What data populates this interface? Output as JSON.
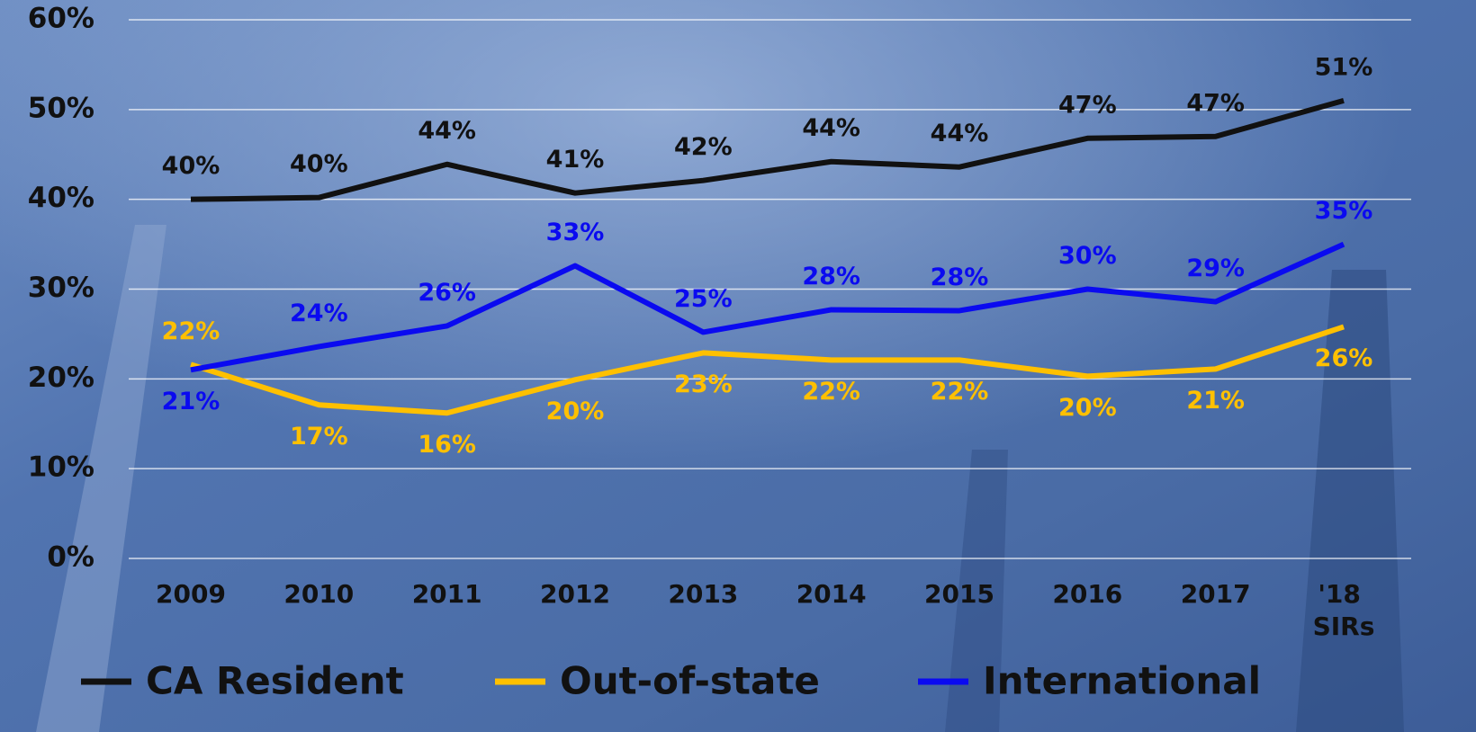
{
  "chart_data": {
    "type": "line",
    "categories": [
      "2009",
      "2010",
      "2011",
      "2012",
      "2013",
      "2014",
      "2015",
      "2016",
      "2017",
      "'18 SIRs"
    ],
    "series": [
      {
        "name": "CA Resident",
        "color": "#111111",
        "values": [
          40.0,
          40.2,
          43.9,
          40.7,
          42.1,
          44.2,
          43.6,
          46.8,
          47.0,
          51.0
        ],
        "value_labels": [
          "40%",
          "40%",
          "44%",
          "41%",
          "42%",
          "44%",
          "44%",
          "47%",
          "47%",
          "51%"
        ]
      },
      {
        "name": "Out-of-state",
        "color": "#ffc000",
        "values": [
          21.6,
          17.1,
          16.2,
          19.9,
          22.9,
          22.1,
          22.1,
          20.3,
          21.1,
          25.8
        ],
        "value_labels": [
          "22%",
          "17%",
          "16%",
          "20%",
          "23%",
          "22%",
          "22%",
          "20%",
          "21%",
          "26%"
        ]
      },
      {
        "name": "International",
        "color": "#0a0af0",
        "values": [
          21.0,
          23.6,
          25.9,
          32.6,
          25.2,
          27.7,
          27.6,
          30.0,
          28.6,
          35.0
        ],
        "value_labels": [
          "21%",
          "24%",
          "26%",
          "33%",
          "25%",
          "28%",
          "28%",
          "30%",
          "29%",
          "35%"
        ]
      }
    ],
    "ylim": [
      0,
      60
    ],
    "yticks": [
      {
        "value": 0,
        "label": "0%"
      },
      {
        "value": 10,
        "label": "10%"
      },
      {
        "value": 20,
        "label": "20%"
      },
      {
        "value": 30,
        "label": "30%"
      },
      {
        "value": 40,
        "label": "40%"
      },
      {
        "value": 50,
        "label": "50%"
      },
      {
        "value": 60,
        "label": "60%"
      }
    ],
    "grid": true,
    "legend": "bottom"
  }
}
